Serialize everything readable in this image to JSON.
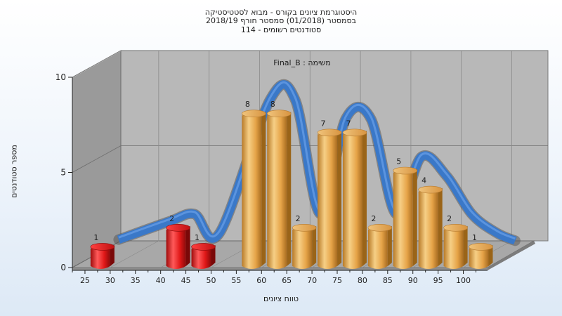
{
  "title_lines": [
    "היסטוגרמת ציונים בקורס - מבוא לסטטיסטיקה",
    "בסמסטר  (01/2018)  סמסטר חורף 2018/19",
    "סטודנטים רשומים - 114"
  ],
  "colors": {
    "fail_bar": "#e01818",
    "pass_bar": "#e8a848",
    "ribbon": "#3a78c8",
    "wall": "#b8b8b8",
    "left_wall": "#9a9a9a",
    "floor": "#a8a8a8"
  },
  "chart_data": {
    "type": "bar",
    "title": "היסטוגרמת ציונים בקורס - מבוא לסטטיסטיקה",
    "subtitle": "בסמסטר  (01/2018)  סמסטר חורף 2018/19 · סטודנטים רשומים - 114",
    "annotation": "משימה : Final_B",
    "xlabel": "טווח ציונים",
    "ylabel": "מספר סטודנטים",
    "ylim": [
      0,
      10
    ],
    "yticks": [
      0,
      5,
      10
    ],
    "xticks": [
      "25",
      "30",
      "35",
      "40",
      "45",
      "50",
      "55",
      "60",
      "65",
      "70",
      "75",
      "80",
      "85",
      "90",
      "95",
      "100"
    ],
    "grid": true,
    "bars": [
      {
        "x": 27.5,
        "value": 1,
        "status": "fail"
      },
      {
        "x": 42.5,
        "value": 2,
        "status": "fail"
      },
      {
        "x": 47.5,
        "value": 1,
        "status": "fail"
      },
      {
        "x": 57.5,
        "value": 8,
        "status": "pass"
      },
      {
        "x": 62.5,
        "value": 8,
        "status": "pass"
      },
      {
        "x": 67.5,
        "value": 2,
        "status": "pass"
      },
      {
        "x": 72.5,
        "value": 7,
        "status": "pass"
      },
      {
        "x": 77.5,
        "value": 7,
        "status": "pass"
      },
      {
        "x": 82.5,
        "value": 2,
        "status": "pass"
      },
      {
        "x": 87.5,
        "value": 5,
        "status": "pass"
      },
      {
        "x": 92.5,
        "value": 4,
        "status": "pass"
      },
      {
        "x": 97.5,
        "value": 2,
        "status": "pass"
      },
      {
        "x": 102.5,
        "value": 1,
        "status": "pass"
      }
    ]
  }
}
